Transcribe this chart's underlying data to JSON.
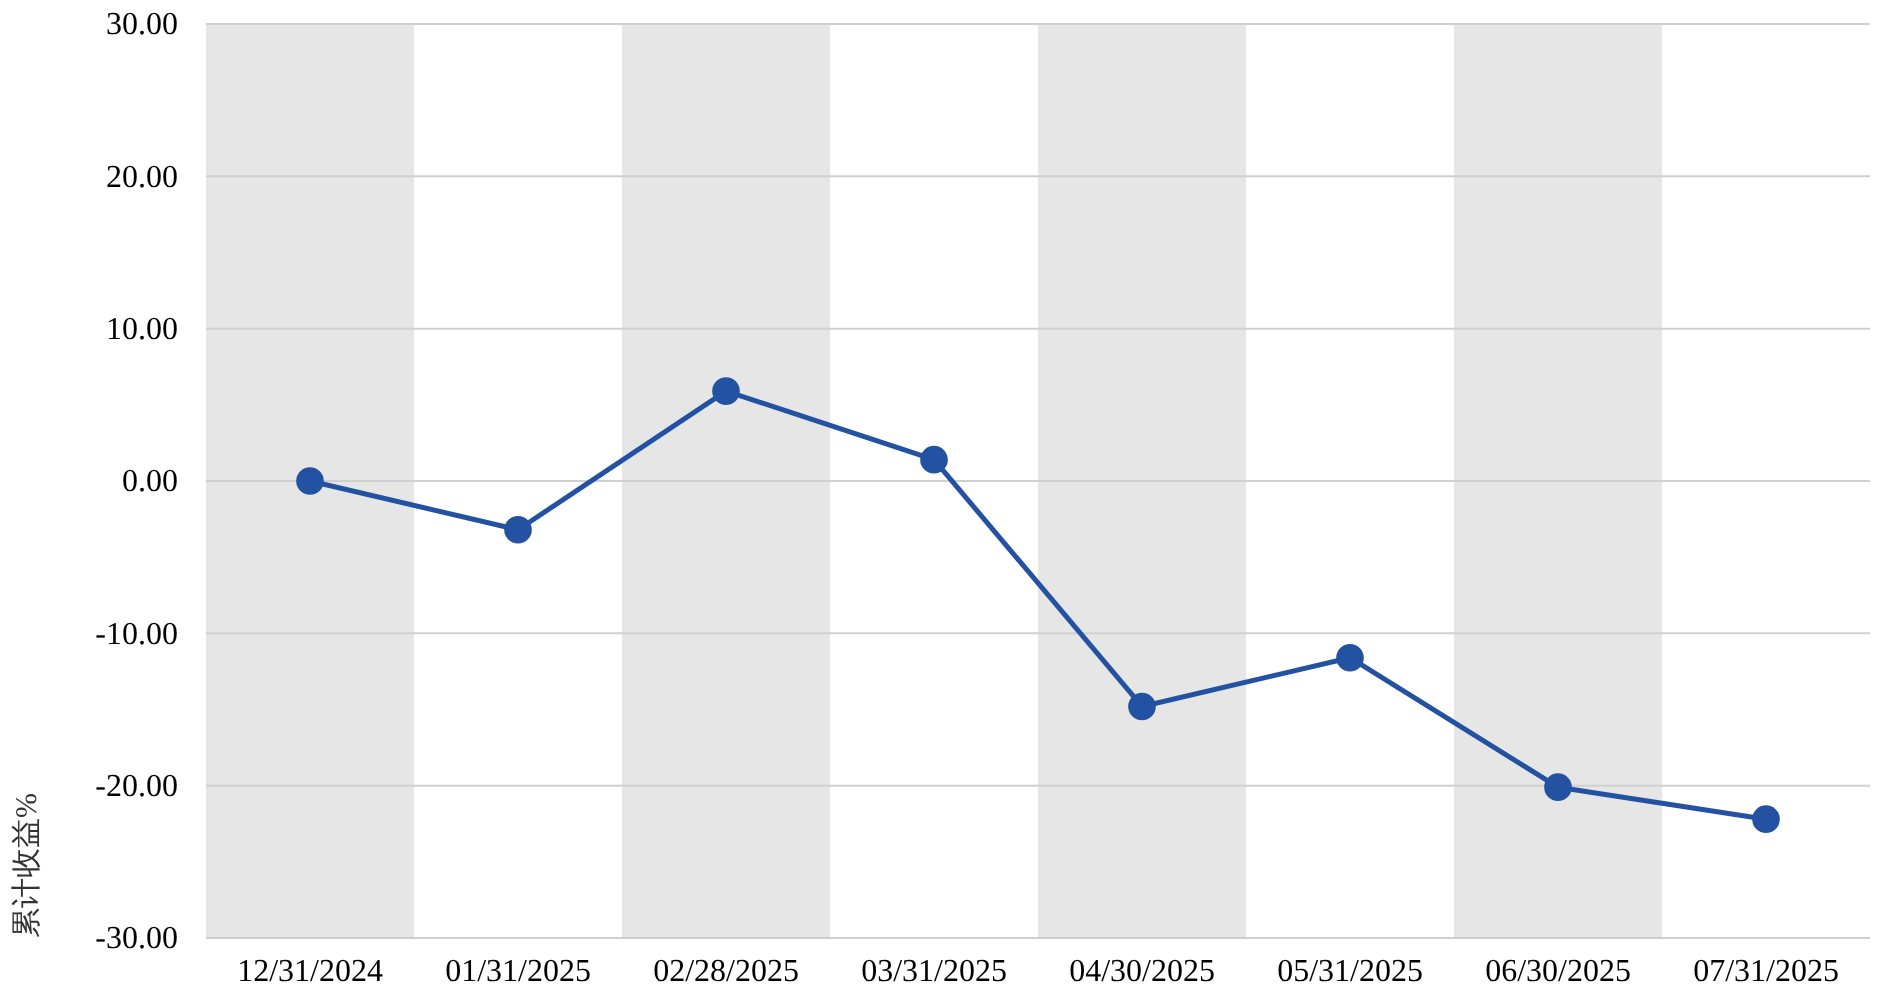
{
  "chart_data": {
    "type": "line",
    "ylabel": "累计收益%",
    "categories": [
      "12/31/2024",
      "01/31/2025",
      "02/28/2025",
      "03/31/2025",
      "04/30/2025",
      "05/31/2025",
      "06/30/2025",
      "07/31/2025"
    ],
    "series": [
      {
        "color": "#2352a3",
        "values": [
          0,
          -3.2,
          5.9,
          1.4,
          -14.8,
          -11.6,
          -20.1,
          -22.2
        ]
      }
    ],
    "ylim": [
      -30,
      30
    ],
    "yticks": [
      {
        "value": -30,
        "label": "-30.00"
      },
      {
        "value": -20,
        "label": "-20.00"
      },
      {
        "value": -10,
        "label": "-10.00"
      },
      {
        "value": 0,
        "label": "0.00"
      },
      {
        "value": 10,
        "label": "10.00"
      },
      {
        "value": 20,
        "label": "20.00"
      },
      {
        "value": 30,
        "label": "30.00"
      }
    ],
    "grid": "y",
    "marker": "circle",
    "line_style": "solid"
  }
}
